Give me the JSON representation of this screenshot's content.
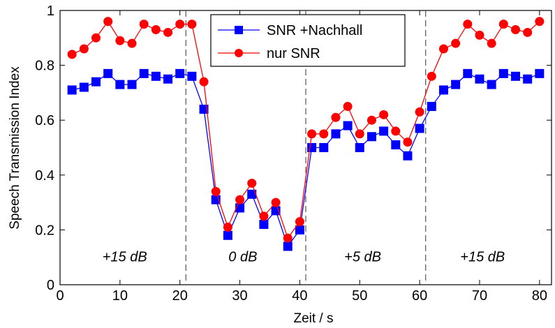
{
  "chart_data": {
    "type": "line",
    "xlabel": "Zeit / s",
    "ylabel": "Speech Transmission Index",
    "xlim": [
      0,
      82
    ],
    "ylim": [
      0,
      1
    ],
    "xticks": [
      "0",
      "10",
      "20",
      "30",
      "40",
      "50",
      "60",
      "70",
      "80"
    ],
    "yticks": [
      "0",
      "0.2",
      "0.4",
      "0.6",
      "0.8",
      "1"
    ],
    "grid": false,
    "legend_position": "top-center",
    "x": [
      2,
      4,
      6,
      8,
      10,
      12,
      14,
      16,
      18,
      20,
      22,
      24,
      26,
      28,
      30,
      32,
      34,
      36,
      38,
      40,
      42,
      44,
      46,
      48,
      50,
      52,
      54,
      56,
      58,
      60,
      62,
      64,
      66,
      68,
      70,
      72,
      74,
      76,
      78,
      80
    ],
    "series": [
      {
        "name": "SNR +Nachhall",
        "color": "#0000ff",
        "marker": "square",
        "values": [
          0.71,
          0.72,
          0.74,
          0.77,
          0.73,
          0.73,
          0.77,
          0.76,
          0.75,
          0.77,
          0.76,
          0.64,
          0.31,
          0.18,
          0.28,
          0.33,
          0.22,
          0.27,
          0.14,
          0.2,
          0.5,
          0.5,
          0.55,
          0.58,
          0.5,
          0.54,
          0.56,
          0.51,
          0.47,
          0.57,
          0.65,
          0.71,
          0.73,
          0.77,
          0.75,
          0.73,
          0.77,
          0.76,
          0.75,
          0.77
        ]
      },
      {
        "name": "nur SNR",
        "color": "#ff0000",
        "marker": "circle",
        "values": [
          0.84,
          0.86,
          0.9,
          0.96,
          0.89,
          0.88,
          0.95,
          0.93,
          0.92,
          0.95,
          0.95,
          0.74,
          0.34,
          0.21,
          0.31,
          0.37,
          0.25,
          0.3,
          0.17,
          0.23,
          0.55,
          0.55,
          0.61,
          0.65,
          0.55,
          0.6,
          0.62,
          0.56,
          0.52,
          0.63,
          0.76,
          0.86,
          0.88,
          0.95,
          0.91,
          0.88,
          0.95,
          0.93,
          0.92,
          0.96
        ]
      }
    ],
    "region_dividers": [
      21,
      41,
      61
    ],
    "region_labels": [
      {
        "text": "+15 dB",
        "x": 10.8
      },
      {
        "text": "0 dB",
        "x": 30.5
      },
      {
        "text": "+5 dB",
        "x": 50.5
      },
      {
        "text": "+15 dB",
        "x": 70.5
      }
    ],
    "region_label_y": 0.1
  }
}
